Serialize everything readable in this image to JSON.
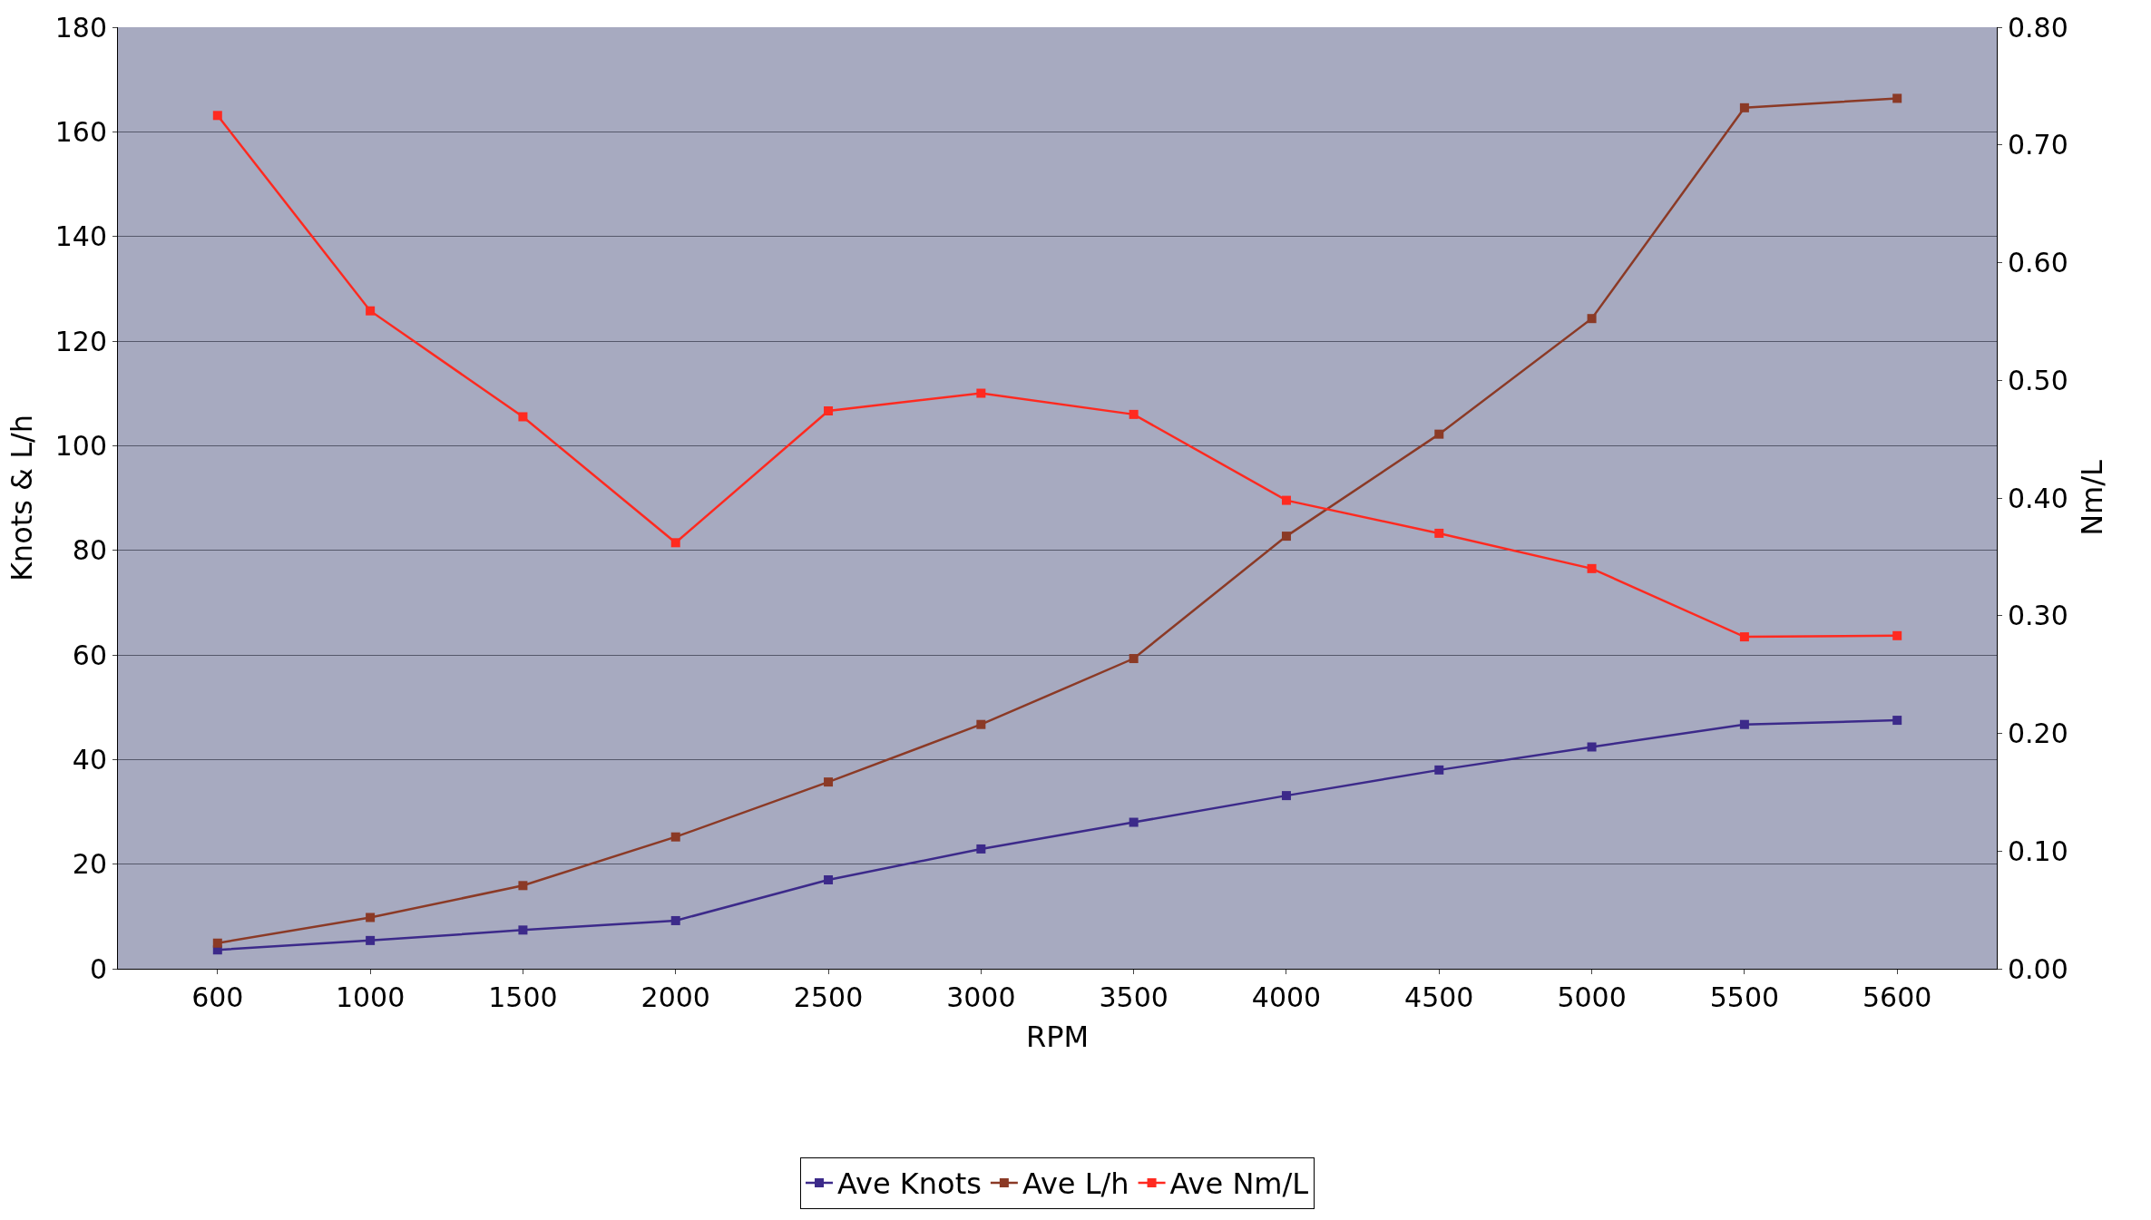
{
  "chart_data": {
    "type": "line",
    "xlabel": "RPM",
    "ylabel": "Knots & L/h",
    "y2label": "Nm/L",
    "categories": [
      "600",
      "1000",
      "1500",
      "2000",
      "2500",
      "3000",
      "3500",
      "4000",
      "4500",
      "5000",
      "5500",
      "5600"
    ],
    "series": [
      {
        "name": "Ave Knots",
        "color": "#3c2a8a",
        "values": [
          3.6,
          5.4,
          7.4,
          9.2,
          17,
          22.9,
          28,
          33.1,
          38,
          42.4,
          46.7,
          47.5
        ]
      },
      {
        "name": "Ave L/h",
        "color": "#8b3a26",
        "values": [
          4.9,
          9.8,
          15.9,
          25.2,
          35.7,
          46.7,
          59.3,
          82.7,
          102.2,
          124.3,
          164.6,
          166.4
        ]
      },
      {
        "name": "Ave Nm/L",
        "color": "#ff2a20",
        "axis": "y2",
        "values": [
          0.725,
          0.559,
          0.469,
          0.362,
          0.474,
          0.489,
          0.471,
          0.398,
          0.37,
          0.34,
          0.282,
          0.283
        ]
      }
    ],
    "ylim": [
      0,
      180
    ],
    "yticks": [
      0,
      20,
      40,
      60,
      80,
      100,
      120,
      140,
      160,
      180
    ],
    "y2lim": [
      0,
      0.8
    ],
    "y2ticks": [
      {
        "value": 0,
        "label": "0.00"
      },
      {
        "value": 0.1,
        "label": "0.10"
      },
      {
        "value": 0.2,
        "label": "0.20"
      },
      {
        "value": 0.3,
        "label": "0.30"
      },
      {
        "value": 0.4,
        "label": "0.40"
      },
      {
        "value": 0.5,
        "label": "0.50"
      },
      {
        "value": 0.6,
        "label": "0.60"
      },
      {
        "value": 0.7,
        "label": "0.70"
      },
      {
        "value": 0.8,
        "label": "0.80"
      }
    ],
    "grid": "y",
    "legend": "bottom",
    "marker": "square",
    "line_style": "solid"
  }
}
